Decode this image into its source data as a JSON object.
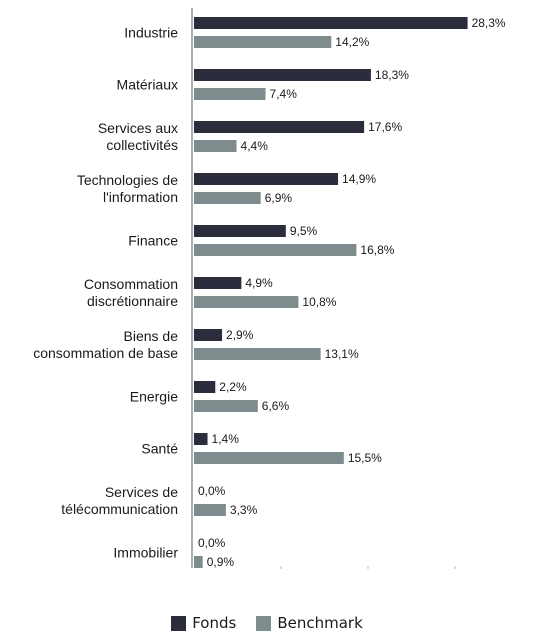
{
  "chart_data": {
    "type": "bar",
    "orientation": "horizontal",
    "categories": [
      "Industrie",
      "Matériaux",
      "Services aux collectivités",
      "Technologies de l'information",
      "Finance",
      "Consommation discrétionnaire",
      "Biens de consommation de base",
      "Energie",
      "Santé",
      "Services de télécommunication",
      "Immobilier"
    ],
    "series": [
      {
        "name": "Fonds",
        "color": "#2b2d3d",
        "values": [
          28.3,
          18.3,
          17.6,
          14.9,
          9.5,
          4.9,
          2.9,
          2.2,
          1.4,
          0.0,
          0.0
        ],
        "labels": [
          "28,3%",
          "18,3%",
          "17,6%",
          "14,9%",
          "9,5%",
          "4,9%",
          "2,9%",
          "2,2%",
          "1,4%",
          "0,0%",
          "0,0%"
        ]
      },
      {
        "name": "Benchmark",
        "color": "#7f8c8d",
        "values": [
          14.2,
          7.4,
          4.4,
          6.9,
          16.8,
          10.8,
          13.1,
          6.6,
          15.5,
          3.3,
          0.9
        ],
        "labels": [
          "14,2%",
          "7,4%",
          "4,4%",
          "6,9%",
          "16,8%",
          "10,8%",
          "13,1%",
          "6,6%",
          "15,5%",
          "3,3%",
          "0,9%"
        ]
      }
    ],
    "xlim": [
      0,
      30
    ],
    "grid": false,
    "legend_position": "bottom"
  },
  "legend": {
    "fonds_label": "Fonds",
    "benchmark_label": "Benchmark"
  }
}
